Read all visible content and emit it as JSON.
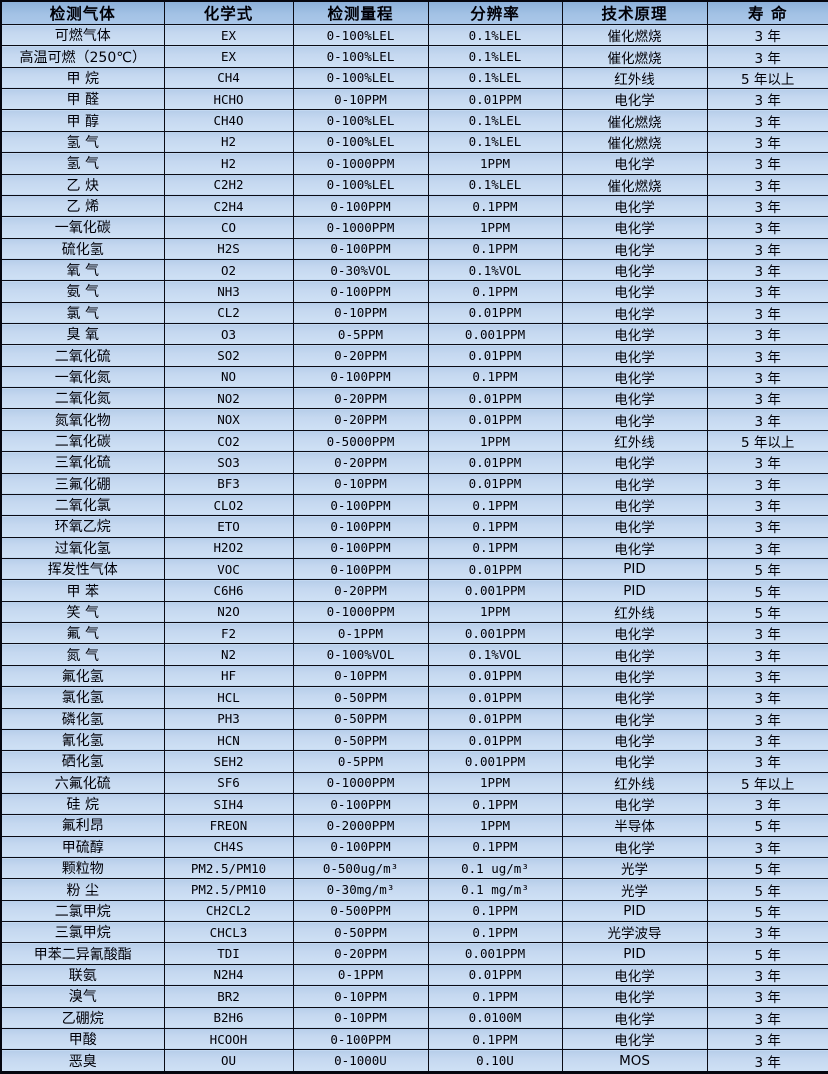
{
  "table": {
    "title": "gas-detector-specification-table",
    "columns": [
      "检测气体",
      "化学式",
      "检测量程",
      "分辨率",
      "技术原理",
      "寿 命"
    ],
    "rows": [
      [
        "可燃气体",
        "EX",
        "0-100%LEL",
        "0.1%LEL",
        "催化燃烧",
        "3 年"
      ],
      [
        "高温可燃（250℃）",
        "EX",
        "0-100%LEL",
        "0.1%LEL",
        "催化燃烧",
        "3 年"
      ],
      [
        "甲 烷",
        "CH4",
        "0-100%LEL",
        "0.1%LEL",
        "红外线",
        "5 年以上"
      ],
      [
        "甲 醛",
        "HCHO",
        "0-10PPM",
        "0.01PPM",
        "电化学",
        "3 年"
      ],
      [
        "甲 醇",
        "CH4O",
        "0-100%LEL",
        "0.1%LEL",
        "催化燃烧",
        "3 年"
      ],
      [
        "氢 气",
        "H2",
        "0-100%LEL",
        "0.1%LEL",
        "催化燃烧",
        "3 年"
      ],
      [
        "氢 气",
        "H2",
        "0-1000PPM",
        "1PPM",
        "电化学",
        "3 年"
      ],
      [
        "乙 炔",
        "C2H2",
        "0-100%LEL",
        "0.1%LEL",
        "催化燃烧",
        "3 年"
      ],
      [
        "乙 烯",
        "C2H4",
        "0-100PPM",
        "0.1PPM",
        "电化学",
        "3 年"
      ],
      [
        "一氧化碳",
        "CO",
        "0-1000PPM",
        "1PPM",
        "电化学",
        "3 年"
      ],
      [
        "硫化氢",
        "H2S",
        "0-100PPM",
        "0.1PPM",
        "电化学",
        "3 年"
      ],
      [
        "氧 气",
        "O2",
        "0-30%VOL",
        "0.1%VOL",
        "电化学",
        "3 年"
      ],
      [
        "氨 气",
        "NH3",
        "0-100PPM",
        "0.1PPM",
        "电化学",
        "3 年"
      ],
      [
        "氯 气",
        "CL2",
        "0-10PPM",
        "0.01PPM",
        "电化学",
        "3 年"
      ],
      [
        "臭 氧",
        "O3",
        "0-5PPM",
        "0.001PPM",
        "电化学",
        "3 年"
      ],
      [
        "二氧化硫",
        "SO2",
        "0-20PPM",
        "0.01PPM",
        "电化学",
        "3 年"
      ],
      [
        "一氧化氮",
        "NO",
        "0-100PPM",
        "0.1PPM",
        "电化学",
        "3 年"
      ],
      [
        "二氧化氮",
        "NO2",
        "0-20PPM",
        "0.01PPM",
        "电化学",
        "3 年"
      ],
      [
        "氮氧化物",
        "NOX",
        "0-20PPM",
        "0.01PPM",
        "电化学",
        "3 年"
      ],
      [
        "二氧化碳",
        "CO2",
        "0-5000PPM",
        "1PPM",
        "红外线",
        "5 年以上"
      ],
      [
        "三氧化硫",
        "SO3",
        "0-20PPM",
        "0.01PPM",
        "电化学",
        "3 年"
      ],
      [
        "三氟化硼",
        "BF3",
        "0-10PPM",
        "0.01PPM",
        "电化学",
        "3 年"
      ],
      [
        "二氧化氯",
        "CLO2",
        "0-100PPM",
        "0.1PPM",
        "电化学",
        "3 年"
      ],
      [
        "环氧乙烷",
        "ETO",
        "0-100PPM",
        "0.1PPM",
        "电化学",
        "3 年"
      ],
      [
        "过氧化氢",
        "H2O2",
        "0-100PPM",
        "0.1PPM",
        "电化学",
        "3 年"
      ],
      [
        "挥发性气体",
        "VOC",
        "0-100PPM",
        "0.01PPM",
        "PID",
        "5 年"
      ],
      [
        "甲 苯",
        "C6H6",
        "0-20PPM",
        "0.001PPM",
        "PID",
        "5 年"
      ],
      [
        "笑 气",
        "N2O",
        "0-1000PPM",
        "1PPM",
        "红外线",
        "5 年"
      ],
      [
        "氟 气",
        "F2",
        "0-1PPM",
        "0.001PPM",
        "电化学",
        "3 年"
      ],
      [
        "氮 气",
        "N2",
        "0-100%VOL",
        "0.1%VOL",
        "电化学",
        "3 年"
      ],
      [
        "氟化氢",
        "HF",
        "0-10PPM",
        "0.01PPM",
        "电化学",
        "3 年"
      ],
      [
        "氯化氢",
        "HCL",
        "0-50PPM",
        "0.01PPM",
        "电化学",
        "3 年"
      ],
      [
        "磷化氢",
        "PH3",
        "0-50PPM",
        "0.01PPM",
        "电化学",
        "3 年"
      ],
      [
        "氰化氢",
        "HCN",
        "0-50PPM",
        "0.01PPM",
        "电化学",
        "3 年"
      ],
      [
        "硒化氢",
        "SEH2",
        "0-5PPM",
        "0.001PPM",
        "电化学",
        "3 年"
      ],
      [
        "六氟化硫",
        "SF6",
        "0-1000PPM",
        "1PPM",
        "红外线",
        "5 年以上"
      ],
      [
        "硅 烷",
        "SIH4",
        "0-100PPM",
        "0.1PPM",
        "电化学",
        "3 年"
      ],
      [
        "氟利昂",
        "FREON",
        "0-2000PPM",
        "1PPM",
        "半导体",
        "5 年"
      ],
      [
        "甲硫醇",
        "CH4S",
        "0-100PPM",
        "0.1PPM",
        "电化学",
        "3 年"
      ],
      [
        "颗粒物",
        "PM2.5/PM10",
        "0-500ug/m³",
        "0.1 ug/m³",
        "光学",
        "5 年"
      ],
      [
        "粉 尘",
        "PM2.5/PM10",
        "0-30mg/m³",
        "0.1 mg/m³",
        "光学",
        "5 年"
      ],
      [
        "二氯甲烷",
        "CH2CL2",
        "0-500PPM",
        "0.1PPM",
        "PID",
        "5 年"
      ],
      [
        "三氯甲烷",
        "CHCL3",
        "0-50PPM",
        "0.1PPM",
        "光学波导",
        "3 年"
      ],
      [
        "甲苯二异氰酸酯",
        "TDI",
        "0-20PPM",
        "0.001PPM",
        "PID",
        "5 年"
      ],
      [
        "联氨",
        "N2H4",
        "0-1PPM",
        "0.01PPM",
        "电化学",
        "3 年"
      ],
      [
        "溴气",
        "BR2",
        "0-10PPM",
        "0.1PPM",
        "电化学",
        "3 年"
      ],
      [
        "乙硼烷",
        "B2H6",
        "0-10PPM",
        "0.0100M",
        "电化学",
        "3 年"
      ],
      [
        "甲酸",
        "HCOOH",
        "0-100PPM",
        "0.1PPM",
        "电化学",
        "3 年"
      ],
      [
        "恶臭",
        "OU",
        "0-1000U",
        "0.10U",
        "MOS",
        "3 年"
      ]
    ],
    "colors": {
      "header_bg": "#a3c2e5",
      "row_bg": "#c9dcf2",
      "border": "#0a0b14",
      "text": "#010108"
    }
  }
}
